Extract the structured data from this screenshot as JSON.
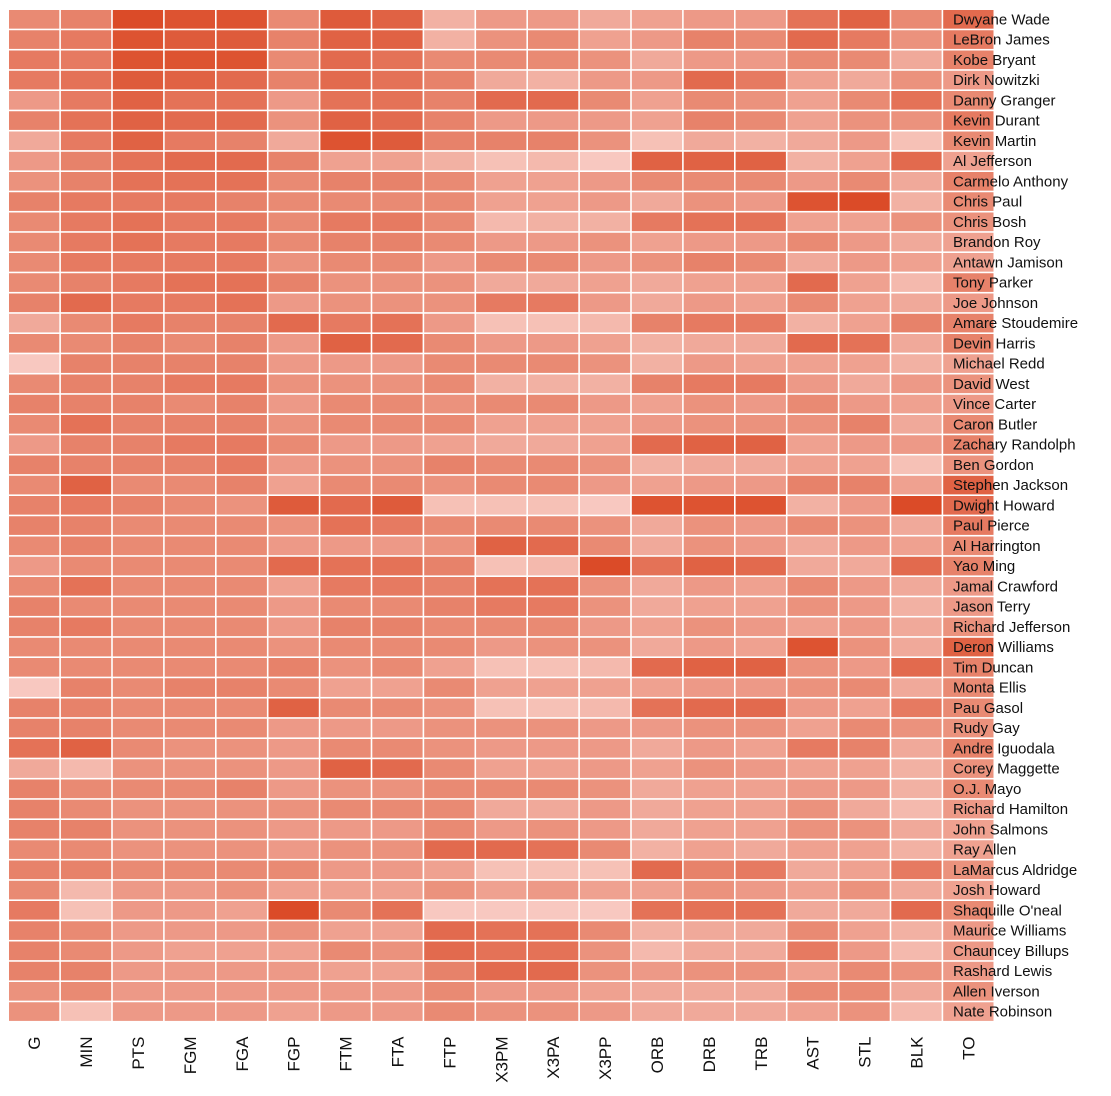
{
  "chart_data": {
    "type": "heatmap",
    "title": "",
    "xlabel": "",
    "ylabel": "",
    "columns": [
      "G",
      "MIN",
      "PTS",
      "FGM",
      "FGA",
      "FGP",
      "FTM",
      "FTA",
      "FTP",
      "X3PM",
      "X3PA",
      "X3PP",
      "ORB",
      "DRB",
      "TRB",
      "AST",
      "STL",
      "BLK",
      "TO"
    ],
    "rows": [
      "Dwyane Wade",
      "LeBron James",
      "Kobe Bryant",
      "Dirk Nowitzki",
      "Danny Granger",
      "Kevin Durant",
      "Kevin Martin",
      "Al Jefferson",
      "Carmelo Anthony",
      "Chris Paul",
      "Chris Bosh",
      "Brandon Roy",
      "Antawn Jamison",
      "Tony Parker",
      "Joe Johnson",
      "Amare Stoudemire",
      "Devin Harris",
      "Michael Redd",
      "David West",
      "Vince Carter",
      "Caron Butler",
      "Zachary Randolph",
      "Ben Gordon",
      "Stephen Jackson",
      "Dwight Howard",
      "Paul Pierce",
      "Al Harrington",
      "Yao Ming",
      "Jamal Crawford",
      "Jason Terry",
      "Richard Jefferson",
      "Deron Williams",
      "Tim Duncan",
      "Monta Ellis",
      "Pau Gasol",
      "Rudy Gay",
      "Andre Iguodala",
      "Corey Maggette",
      "O.J. Mayo",
      "Richard Hamilton",
      "John Salmons",
      "Ray Allen",
      "LaMarcus Aldridge",
      "Josh Howard",
      "Shaquille O'neal",
      "Maurice Williams",
      "Chauncey Billups",
      "Rashard Lewis",
      "Allen Iverson",
      "Nate Robinson"
    ],
    "values": [
      [
        0.55,
        0.6,
        0.95,
        0.9,
        0.9,
        0.55,
        0.85,
        0.8,
        0.3,
        0.45,
        0.45,
        0.35,
        0.4,
        0.45,
        0.45,
        0.7,
        0.8,
        0.55,
        0.75
      ],
      [
        0.6,
        0.65,
        0.9,
        0.85,
        0.85,
        0.6,
        0.8,
        0.8,
        0.3,
        0.5,
        0.55,
        0.4,
        0.45,
        0.6,
        0.55,
        0.75,
        0.65,
        0.5,
        0.65
      ],
      [
        0.65,
        0.65,
        0.9,
        0.9,
        0.9,
        0.55,
        0.75,
        0.7,
        0.55,
        0.55,
        0.55,
        0.5,
        0.35,
        0.45,
        0.45,
        0.55,
        0.55,
        0.35,
        0.6
      ],
      [
        0.65,
        0.7,
        0.85,
        0.8,
        0.75,
        0.6,
        0.75,
        0.7,
        0.6,
        0.35,
        0.3,
        0.45,
        0.45,
        0.75,
        0.65,
        0.4,
        0.35,
        0.5,
        0.45
      ],
      [
        0.45,
        0.65,
        0.8,
        0.7,
        0.7,
        0.45,
        0.7,
        0.7,
        0.6,
        0.75,
        0.75,
        0.55,
        0.4,
        0.55,
        0.5,
        0.4,
        0.55,
        0.7,
        0.55
      ],
      [
        0.6,
        0.7,
        0.8,
        0.75,
        0.75,
        0.5,
        0.8,
        0.75,
        0.6,
        0.45,
        0.45,
        0.45,
        0.4,
        0.6,
        0.55,
        0.4,
        0.5,
        0.5,
        0.65
      ],
      [
        0.35,
        0.65,
        0.8,
        0.65,
        0.6,
        0.35,
        0.9,
        0.85,
        0.6,
        0.6,
        0.6,
        0.5,
        0.2,
        0.35,
        0.3,
        0.35,
        0.45,
        0.2,
        0.55
      ],
      [
        0.45,
        0.6,
        0.7,
        0.75,
        0.75,
        0.6,
        0.4,
        0.4,
        0.3,
        0.2,
        0.25,
        0.15,
        0.8,
        0.8,
        0.8,
        0.3,
        0.4,
        0.75,
        0.4
      ],
      [
        0.5,
        0.6,
        0.7,
        0.7,
        0.7,
        0.55,
        0.6,
        0.6,
        0.55,
        0.4,
        0.4,
        0.45,
        0.55,
        0.55,
        0.55,
        0.45,
        0.55,
        0.35,
        0.6
      ],
      [
        0.6,
        0.65,
        0.65,
        0.65,
        0.6,
        0.55,
        0.55,
        0.55,
        0.55,
        0.4,
        0.4,
        0.45,
        0.35,
        0.5,
        0.45,
        0.9,
        0.95,
        0.3,
        0.55
      ],
      [
        0.55,
        0.65,
        0.7,
        0.65,
        0.65,
        0.55,
        0.65,
        0.65,
        0.55,
        0.25,
        0.3,
        0.3,
        0.65,
        0.7,
        0.7,
        0.4,
        0.4,
        0.5,
        0.5
      ],
      [
        0.55,
        0.65,
        0.7,
        0.65,
        0.65,
        0.55,
        0.6,
        0.6,
        0.55,
        0.45,
        0.45,
        0.5,
        0.4,
        0.45,
        0.45,
        0.55,
        0.45,
        0.35,
        0.4
      ],
      [
        0.55,
        0.65,
        0.65,
        0.65,
        0.65,
        0.5,
        0.55,
        0.55,
        0.45,
        0.55,
        0.55,
        0.45,
        0.5,
        0.6,
        0.55,
        0.35,
        0.45,
        0.4,
        0.4
      ],
      [
        0.55,
        0.6,
        0.65,
        0.7,
        0.7,
        0.6,
        0.5,
        0.5,
        0.5,
        0.35,
        0.35,
        0.4,
        0.35,
        0.4,
        0.4,
        0.75,
        0.4,
        0.25,
        0.6
      ],
      [
        0.6,
        0.75,
        0.65,
        0.65,
        0.7,
        0.45,
        0.5,
        0.5,
        0.5,
        0.65,
        0.65,
        0.45,
        0.35,
        0.45,
        0.4,
        0.55,
        0.4,
        0.35,
        0.45
      ],
      [
        0.35,
        0.55,
        0.65,
        0.6,
        0.6,
        0.75,
        0.65,
        0.7,
        0.45,
        0.2,
        0.2,
        0.25,
        0.6,
        0.65,
        0.65,
        0.3,
        0.4,
        0.6,
        0.6
      ],
      [
        0.55,
        0.55,
        0.6,
        0.55,
        0.6,
        0.45,
        0.8,
        0.75,
        0.55,
        0.45,
        0.45,
        0.4,
        0.3,
        0.35,
        0.35,
        0.75,
        0.7,
        0.35,
        0.6
      ],
      [
        0.15,
        0.6,
        0.6,
        0.6,
        0.6,
        0.45,
        0.45,
        0.45,
        0.55,
        0.55,
        0.55,
        0.5,
        0.3,
        0.45,
        0.4,
        0.4,
        0.4,
        0.3,
        0.4
      ],
      [
        0.55,
        0.6,
        0.6,
        0.65,
        0.65,
        0.5,
        0.5,
        0.5,
        0.55,
        0.3,
        0.3,
        0.3,
        0.6,
        0.65,
        0.65,
        0.45,
        0.35,
        0.45,
        0.5
      ],
      [
        0.6,
        0.6,
        0.6,
        0.55,
        0.6,
        0.45,
        0.55,
        0.55,
        0.5,
        0.55,
        0.55,
        0.45,
        0.4,
        0.5,
        0.45,
        0.55,
        0.45,
        0.4,
        0.45
      ],
      [
        0.55,
        0.7,
        0.6,
        0.6,
        0.6,
        0.5,
        0.55,
        0.55,
        0.55,
        0.4,
        0.4,
        0.4,
        0.45,
        0.5,
        0.5,
        0.5,
        0.6,
        0.35,
        0.55
      ],
      [
        0.45,
        0.6,
        0.6,
        0.65,
        0.65,
        0.55,
        0.45,
        0.45,
        0.4,
        0.35,
        0.35,
        0.4,
        0.75,
        0.8,
        0.8,
        0.4,
        0.45,
        0.45,
        0.6
      ],
      [
        0.6,
        0.6,
        0.6,
        0.6,
        0.65,
        0.45,
        0.5,
        0.5,
        0.6,
        0.55,
        0.55,
        0.5,
        0.3,
        0.35,
        0.35,
        0.4,
        0.4,
        0.2,
        0.5
      ],
      [
        0.55,
        0.8,
        0.55,
        0.55,
        0.6,
        0.4,
        0.55,
        0.55,
        0.5,
        0.55,
        0.55,
        0.45,
        0.4,
        0.45,
        0.45,
        0.6,
        0.6,
        0.4,
        0.8
      ],
      [
        0.6,
        0.65,
        0.6,
        0.55,
        0.5,
        0.85,
        0.75,
        0.85,
        0.2,
        0.2,
        0.2,
        0.15,
        0.9,
        0.9,
        0.9,
        0.3,
        0.45,
        0.95,
        0.75
      ],
      [
        0.6,
        0.6,
        0.55,
        0.55,
        0.55,
        0.5,
        0.7,
        0.65,
        0.55,
        0.55,
        0.55,
        0.5,
        0.35,
        0.5,
        0.45,
        0.55,
        0.5,
        0.35,
        0.65
      ],
      [
        0.55,
        0.6,
        0.55,
        0.55,
        0.55,
        0.45,
        0.45,
        0.45,
        0.5,
        0.8,
        0.75,
        0.55,
        0.35,
        0.5,
        0.45,
        0.35,
        0.45,
        0.4,
        0.55
      ],
      [
        0.45,
        0.55,
        0.55,
        0.55,
        0.55,
        0.75,
        0.7,
        0.7,
        0.6,
        0.2,
        0.25,
        0.95,
        0.7,
        0.8,
        0.75,
        0.35,
        0.35,
        0.75,
        0.6
      ],
      [
        0.55,
        0.7,
        0.55,
        0.55,
        0.55,
        0.4,
        0.65,
        0.65,
        0.6,
        0.7,
        0.7,
        0.5,
        0.35,
        0.45,
        0.4,
        0.55,
        0.45,
        0.35,
        0.45
      ],
      [
        0.6,
        0.55,
        0.55,
        0.55,
        0.55,
        0.45,
        0.55,
        0.55,
        0.6,
        0.65,
        0.65,
        0.5,
        0.35,
        0.4,
        0.4,
        0.5,
        0.45,
        0.3,
        0.45
      ],
      [
        0.6,
        0.65,
        0.55,
        0.55,
        0.55,
        0.45,
        0.6,
        0.6,
        0.55,
        0.55,
        0.55,
        0.45,
        0.4,
        0.5,
        0.45,
        0.4,
        0.45,
        0.35,
        0.5
      ],
      [
        0.55,
        0.55,
        0.55,
        0.55,
        0.55,
        0.5,
        0.55,
        0.55,
        0.55,
        0.45,
        0.5,
        0.5,
        0.35,
        0.45,
        0.4,
        0.9,
        0.5,
        0.35,
        0.8
      ],
      [
        0.55,
        0.55,
        0.55,
        0.55,
        0.55,
        0.6,
        0.5,
        0.55,
        0.4,
        0.2,
        0.2,
        0.25,
        0.75,
        0.8,
        0.8,
        0.5,
        0.45,
        0.75,
        0.6
      ],
      [
        0.15,
        0.6,
        0.55,
        0.6,
        0.6,
        0.55,
        0.4,
        0.4,
        0.55,
        0.4,
        0.4,
        0.4,
        0.4,
        0.45,
        0.45,
        0.5,
        0.55,
        0.35,
        0.55
      ],
      [
        0.6,
        0.6,
        0.55,
        0.55,
        0.55,
        0.8,
        0.55,
        0.55,
        0.5,
        0.2,
        0.2,
        0.25,
        0.7,
        0.75,
        0.75,
        0.45,
        0.4,
        0.65,
        0.55
      ],
      [
        0.6,
        0.6,
        0.55,
        0.55,
        0.55,
        0.45,
        0.45,
        0.45,
        0.5,
        0.5,
        0.5,
        0.45,
        0.45,
        0.5,
        0.5,
        0.4,
        0.55,
        0.5,
        0.5
      ],
      [
        0.7,
        0.8,
        0.55,
        0.5,
        0.5,
        0.45,
        0.55,
        0.55,
        0.5,
        0.45,
        0.45,
        0.45,
        0.35,
        0.45,
        0.4,
        0.65,
        0.6,
        0.35,
        0.6
      ],
      [
        0.35,
        0.25,
        0.5,
        0.5,
        0.5,
        0.45,
        0.8,
        0.75,
        0.55,
        0.4,
        0.4,
        0.45,
        0.4,
        0.5,
        0.45,
        0.4,
        0.4,
        0.3,
        0.5
      ],
      [
        0.6,
        0.55,
        0.55,
        0.55,
        0.6,
        0.45,
        0.5,
        0.5,
        0.55,
        0.55,
        0.55,
        0.5,
        0.35,
        0.4,
        0.4,
        0.45,
        0.45,
        0.3,
        0.55
      ],
      [
        0.6,
        0.55,
        0.5,
        0.5,
        0.5,
        0.5,
        0.55,
        0.55,
        0.55,
        0.35,
        0.35,
        0.45,
        0.35,
        0.4,
        0.4,
        0.5,
        0.35,
        0.25,
        0.45
      ],
      [
        0.6,
        0.6,
        0.5,
        0.5,
        0.5,
        0.45,
        0.45,
        0.45,
        0.55,
        0.45,
        0.5,
        0.45,
        0.35,
        0.4,
        0.4,
        0.5,
        0.5,
        0.35,
        0.4
      ],
      [
        0.55,
        0.55,
        0.5,
        0.5,
        0.5,
        0.45,
        0.5,
        0.5,
        0.75,
        0.75,
        0.7,
        0.55,
        0.3,
        0.4,
        0.35,
        0.4,
        0.4,
        0.3,
        0.4
      ],
      [
        0.6,
        0.6,
        0.55,
        0.55,
        0.55,
        0.55,
        0.45,
        0.45,
        0.4,
        0.2,
        0.2,
        0.2,
        0.75,
        0.6,
        0.65,
        0.35,
        0.4,
        0.65,
        0.5
      ],
      [
        0.55,
        0.25,
        0.45,
        0.45,
        0.5,
        0.4,
        0.4,
        0.4,
        0.5,
        0.4,
        0.45,
        0.4,
        0.4,
        0.5,
        0.45,
        0.4,
        0.5,
        0.35,
        0.4
      ],
      [
        0.65,
        0.2,
        0.45,
        0.45,
        0.4,
        0.95,
        0.55,
        0.7,
        0.15,
        0.15,
        0.15,
        0.15,
        0.7,
        0.7,
        0.7,
        0.35,
        0.35,
        0.75,
        0.55
      ],
      [
        0.6,
        0.55,
        0.45,
        0.45,
        0.45,
        0.5,
        0.4,
        0.4,
        0.75,
        0.7,
        0.7,
        0.55,
        0.3,
        0.35,
        0.35,
        0.55,
        0.4,
        0.3,
        0.45
      ],
      [
        0.6,
        0.55,
        0.45,
        0.4,
        0.4,
        0.4,
        0.55,
        0.5,
        0.75,
        0.7,
        0.7,
        0.5,
        0.25,
        0.35,
        0.35,
        0.65,
        0.45,
        0.25,
        0.45
      ],
      [
        0.6,
        0.6,
        0.45,
        0.45,
        0.45,
        0.45,
        0.4,
        0.4,
        0.6,
        0.75,
        0.75,
        0.5,
        0.45,
        0.5,
        0.5,
        0.4,
        0.55,
        0.5,
        0.45
      ],
      [
        0.5,
        0.55,
        0.45,
        0.45,
        0.45,
        0.45,
        0.45,
        0.45,
        0.55,
        0.45,
        0.45,
        0.4,
        0.35,
        0.35,
        0.35,
        0.55,
        0.55,
        0.35,
        0.5
      ],
      [
        0.5,
        0.2,
        0.45,
        0.45,
        0.45,
        0.4,
        0.45,
        0.45,
        0.55,
        0.5,
        0.5,
        0.45,
        0.35,
        0.35,
        0.35,
        0.4,
        0.5,
        0.25,
        0.4
      ]
    ],
    "color_low": "#fde0dc",
    "color_high": "#d9431e",
    "grid": false,
    "legend": "none"
  }
}
